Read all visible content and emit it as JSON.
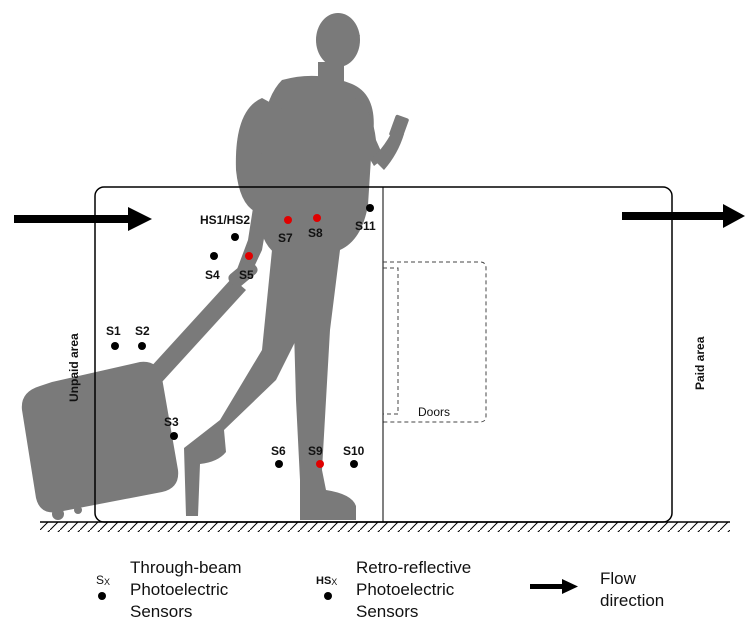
{
  "areas": {
    "unpaid": "Unpaid area",
    "paid": "Paid area",
    "doors": "Doors"
  },
  "sensors": [
    {
      "id": "s1",
      "label": "S1",
      "red": false
    },
    {
      "id": "s2",
      "label": "S2",
      "red": false
    },
    {
      "id": "s3",
      "label": "S3",
      "red": false
    },
    {
      "id": "s4",
      "label": "S4",
      "red": false
    },
    {
      "id": "s5",
      "label": "S5",
      "red": true
    },
    {
      "id": "s6",
      "label": "S6",
      "red": false
    },
    {
      "id": "s7",
      "label": "S7",
      "red": true
    },
    {
      "id": "s8",
      "label": "S8",
      "red": true
    },
    {
      "id": "s9",
      "label": "S9",
      "red": true
    },
    {
      "id": "s10",
      "label": "S10",
      "red": false
    },
    {
      "id": "s11",
      "label": "S11",
      "red": false
    },
    {
      "id": "hs",
      "label": "HS1/HS2",
      "red": false
    }
  ],
  "legend": {
    "through_symbol": "S",
    "through_subscript": "X",
    "through_line1": "Through-beam",
    "through_line2": "Photoelectric",
    "through_line3": "Sensors",
    "retro_symbol": "HS",
    "retro_subscript": "X",
    "retro_line1": "Retro-reflective",
    "retro_line2": "Photoelectric",
    "retro_line3": "Sensors",
    "flow_line1": "Flow",
    "flow_line2": "direction"
  },
  "colors": {
    "silhouette": "#7a7a7a",
    "sensor_active": "#e00000",
    "sensor_idle": "#000000",
    "line": "#000000"
  }
}
